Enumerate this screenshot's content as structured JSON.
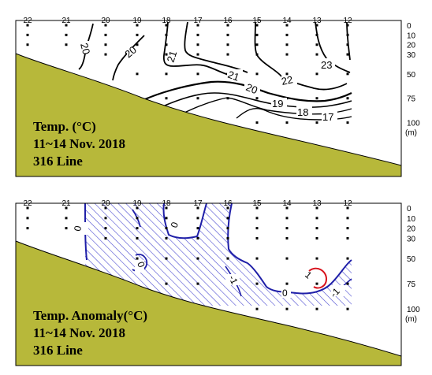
{
  "chart_data": [
    {
      "type": "contour",
      "title": [
        "Temp. (°C)",
        "11~14 Nov. 2018",
        "316 Line"
      ],
      "variable": "Temperature",
      "unit": "°C",
      "stations": [
        "22",
        "21",
        "20",
        "19",
        "18",
        "17",
        "16",
        "15",
        "14",
        "13",
        "12"
      ],
      "depth_ticks": [
        "0",
        "10",
        "20",
        "30",
        "50",
        "75",
        "100"
      ],
      "depth_unit": "(m)",
      "depth_range": [
        0,
        110
      ],
      "contour_levels": [
        {
          "label": "17",
          "value": 17
        },
        {
          "label": "18",
          "value": 18
        },
        {
          "label": "19",
          "value": 19
        },
        {
          "label": "20",
          "value": 20
        },
        {
          "label": "21",
          "value": 21
        },
        {
          "label": "22",
          "value": 22
        },
        {
          "label": "23",
          "value": 23
        }
      ],
      "colors": {
        "bottom_topography": "#b7b83a",
        "contour": "#000000"
      }
    },
    {
      "type": "contour",
      "title": [
        "Temp. Anomaly(°C)",
        "11~14 Nov. 2018",
        "316 Line"
      ],
      "variable": "Temperature anomaly",
      "unit": "°C",
      "stations": [
        "22",
        "21",
        "20",
        "19",
        "18",
        "17",
        "16",
        "15",
        "14",
        "13",
        "12"
      ],
      "depth_ticks": [
        "0",
        "10",
        "20",
        "30",
        "50",
        "75",
        "100"
      ],
      "depth_unit": "(m)",
      "depth_range": [
        0,
        110
      ],
      "contour_levels": [
        {
          "label": "-1",
          "value": -1
        },
        {
          "label": "0",
          "value": 0
        },
        {
          "label": "1",
          "value": 1
        }
      ],
      "negative_region": "hatched",
      "colors": {
        "bottom_topography": "#b7b83a",
        "negative_contour": "#1f1fa8",
        "positive_contour": "#d8141e",
        "hatch": "#4a4ad0"
      }
    }
  ]
}
